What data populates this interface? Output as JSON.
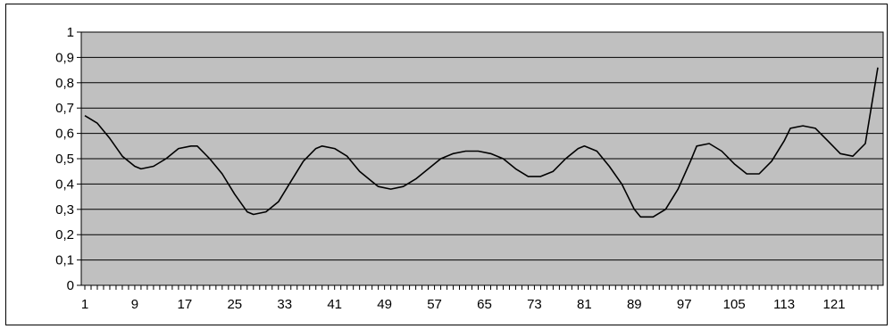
{
  "chart_data": {
    "type": "line",
    "title": "",
    "xlabel": "",
    "ylabel": "",
    "ylim": [
      0,
      1
    ],
    "xlim": [
      1,
      128
    ],
    "y_ticks": [
      "0",
      "0,1",
      "0,2",
      "0,3",
      "0,4",
      "0,5",
      "0,6",
      "0,7",
      "0,8",
      "0,9",
      "1"
    ],
    "x_ticks": [
      "1",
      "9",
      "17",
      "25",
      "33",
      "41",
      "49",
      "57",
      "65",
      "73",
      "81",
      "89",
      "97",
      "105",
      "113",
      "121"
    ],
    "grid": true,
    "legend": "none",
    "plot_background": "#c0c0c0",
    "line_color": "#000000",
    "series": [
      {
        "x": [
          1,
          3,
          5,
          7,
          9,
          10,
          12,
          14,
          16,
          18,
          19,
          21,
          23,
          25,
          27,
          28,
          30,
          32,
          34,
          36,
          38,
          39,
          41,
          43,
          45,
          47,
          48,
          50,
          52,
          54,
          56,
          58,
          60,
          62,
          64,
          66,
          68,
          70,
          72,
          74,
          76,
          78,
          80,
          81,
          83,
          85,
          87,
          89,
          90,
          92,
          94,
          96,
          98,
          99,
          101,
          103,
          105,
          107,
          109,
          111,
          113,
          114,
          116,
          118,
          120,
          122,
          124,
          126,
          128
        ],
        "y": [
          0.67,
          0.64,
          0.58,
          0.51,
          0.47,
          0.46,
          0.47,
          0.5,
          0.54,
          0.55,
          0.55,
          0.5,
          0.44,
          0.36,
          0.29,
          0.28,
          0.29,
          0.33,
          0.41,
          0.49,
          0.54,
          0.55,
          0.54,
          0.51,
          0.45,
          0.41,
          0.39,
          0.38,
          0.39,
          0.42,
          0.46,
          0.5,
          0.52,
          0.53,
          0.53,
          0.52,
          0.5,
          0.46,
          0.43,
          0.43,
          0.45,
          0.5,
          0.54,
          0.55,
          0.53,
          0.47,
          0.4,
          0.3,
          0.27,
          0.27,
          0.3,
          0.38,
          0.49,
          0.55,
          0.56,
          0.53,
          0.48,
          0.44,
          0.44,
          0.49,
          0.57,
          0.62,
          0.63,
          0.62,
          0.57,
          0.52,
          0.51,
          0.56,
          0.86
        ]
      }
    ]
  }
}
